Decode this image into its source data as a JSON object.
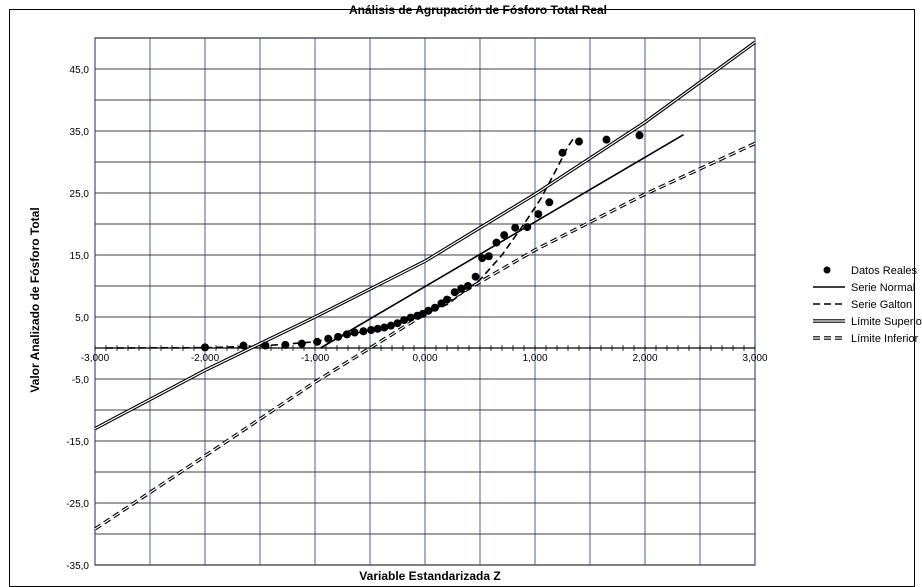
{
  "chart_data": {
    "type": "scatter",
    "title": "Análisis de Agrupación de Fósforo Total Real",
    "xlabel": "Variable Estandarizada Z",
    "ylabel": "Valor Analizado de Fósforo Total",
    "xlim": [
      -3.0,
      3.0
    ],
    "ylim": [
      -35.0,
      50.0
    ],
    "grid": true,
    "legend_position": "right",
    "x_ticks": [
      -3.0,
      -2.0,
      -1.0,
      0.0,
      1.0,
      2.0,
      3.0
    ],
    "x_tick_labels": [
      "-3,000",
      "-2,000",
      "-1,000",
      "0,000",
      "1,000",
      "2,000",
      "3,000"
    ],
    "y_ticks": [
      -35.0,
      -25.0,
      -15.0,
      -5.0,
      5.0,
      15.0,
      25.0,
      35.0,
      45.0
    ],
    "y_tick_labels": [
      "-35,0",
      "-25,0",
      "-15,0",
      "-5,0",
      "5,0",
      "15,0",
      "25,0",
      "35,0",
      "45,0"
    ],
    "series": [
      {
        "name": "Datos Reales",
        "kind": "points",
        "color": "#000000",
        "points": [
          [
            -2.0,
            0.1
          ],
          [
            -1.65,
            0.4
          ],
          [
            -1.45,
            0.4
          ],
          [
            -1.27,
            0.5
          ],
          [
            -1.12,
            0.7
          ],
          [
            -0.98,
            1.0
          ],
          [
            -0.88,
            1.5
          ],
          [
            -0.79,
            1.8
          ],
          [
            -0.71,
            2.2
          ],
          [
            -0.64,
            2.5
          ],
          [
            -0.56,
            2.7
          ],
          [
            -0.49,
            2.9
          ],
          [
            -0.43,
            3.1
          ],
          [
            -0.37,
            3.3
          ],
          [
            -0.31,
            3.6
          ],
          [
            -0.25,
            4.0
          ],
          [
            -0.19,
            4.5
          ],
          [
            -0.13,
            4.9
          ],
          [
            -0.07,
            5.2
          ],
          [
            -0.02,
            5.5
          ],
          [
            0.03,
            6.0
          ],
          [
            0.09,
            6.5
          ],
          [
            0.15,
            7.2
          ],
          [
            0.2,
            7.8
          ],
          [
            0.27,
            9.0
          ],
          [
            0.33,
            9.6
          ],
          [
            0.39,
            10.0
          ],
          [
            0.46,
            11.5
          ],
          [
            0.52,
            14.5
          ],
          [
            0.58,
            14.8
          ],
          [
            0.65,
            17.0
          ],
          [
            0.72,
            18.2
          ],
          [
            0.82,
            19.4
          ],
          [
            0.93,
            19.5
          ],
          [
            1.03,
            21.6
          ],
          [
            1.13,
            23.5
          ],
          [
            1.25,
            31.5
          ],
          [
            1.4,
            33.3
          ],
          [
            1.65,
            33.6
          ],
          [
            1.95,
            34.3
          ]
        ]
      },
      {
        "name": "Serie Normal",
        "kind": "line",
        "style": "solid",
        "color": "#000000",
        "points": [
          [
            -0.95,
            0.0
          ],
          [
            2.35,
            34.4
          ]
        ]
      },
      {
        "name": "Serie Galton",
        "kind": "line",
        "style": "dashed",
        "color": "#000000",
        "points": [
          [
            -2.9,
            0.0
          ],
          [
            -2.0,
            0.05
          ],
          [
            -1.5,
            0.3
          ],
          [
            -1.0,
            1.0
          ],
          [
            -0.6,
            2.5
          ],
          [
            -0.2,
            4.2
          ],
          [
            0.2,
            7.0
          ],
          [
            0.5,
            11.0
          ],
          [
            0.7,
            15.0
          ],
          [
            0.9,
            20.0
          ],
          [
            1.05,
            24.0
          ],
          [
            1.2,
            29.0
          ],
          [
            1.3,
            32.5
          ],
          [
            1.35,
            33.8
          ]
        ]
      },
      {
        "name": "Límite Superior",
        "kind": "line",
        "style": "double",
        "color": "#000000",
        "points": [
          [
            -3.0,
            -13.0
          ],
          [
            -2.0,
            -3.6
          ],
          [
            -1.0,
            5.0
          ],
          [
            0.0,
            14.0
          ],
          [
            1.0,
            24.8
          ],
          [
            2.0,
            36.4
          ],
          [
            3.0,
            49.3
          ]
        ]
      },
      {
        "name": "Límite Inferior",
        "kind": "line",
        "style": "double-dashed",
        "color": "#000000",
        "points": [
          [
            -3.0,
            -29.2
          ],
          [
            -2.0,
            -17.4
          ],
          [
            -1.0,
            -5.5
          ],
          [
            0.0,
            5.5
          ],
          [
            1.0,
            15.8
          ],
          [
            2.0,
            24.8
          ],
          [
            3.0,
            33.0
          ]
        ]
      }
    ]
  }
}
